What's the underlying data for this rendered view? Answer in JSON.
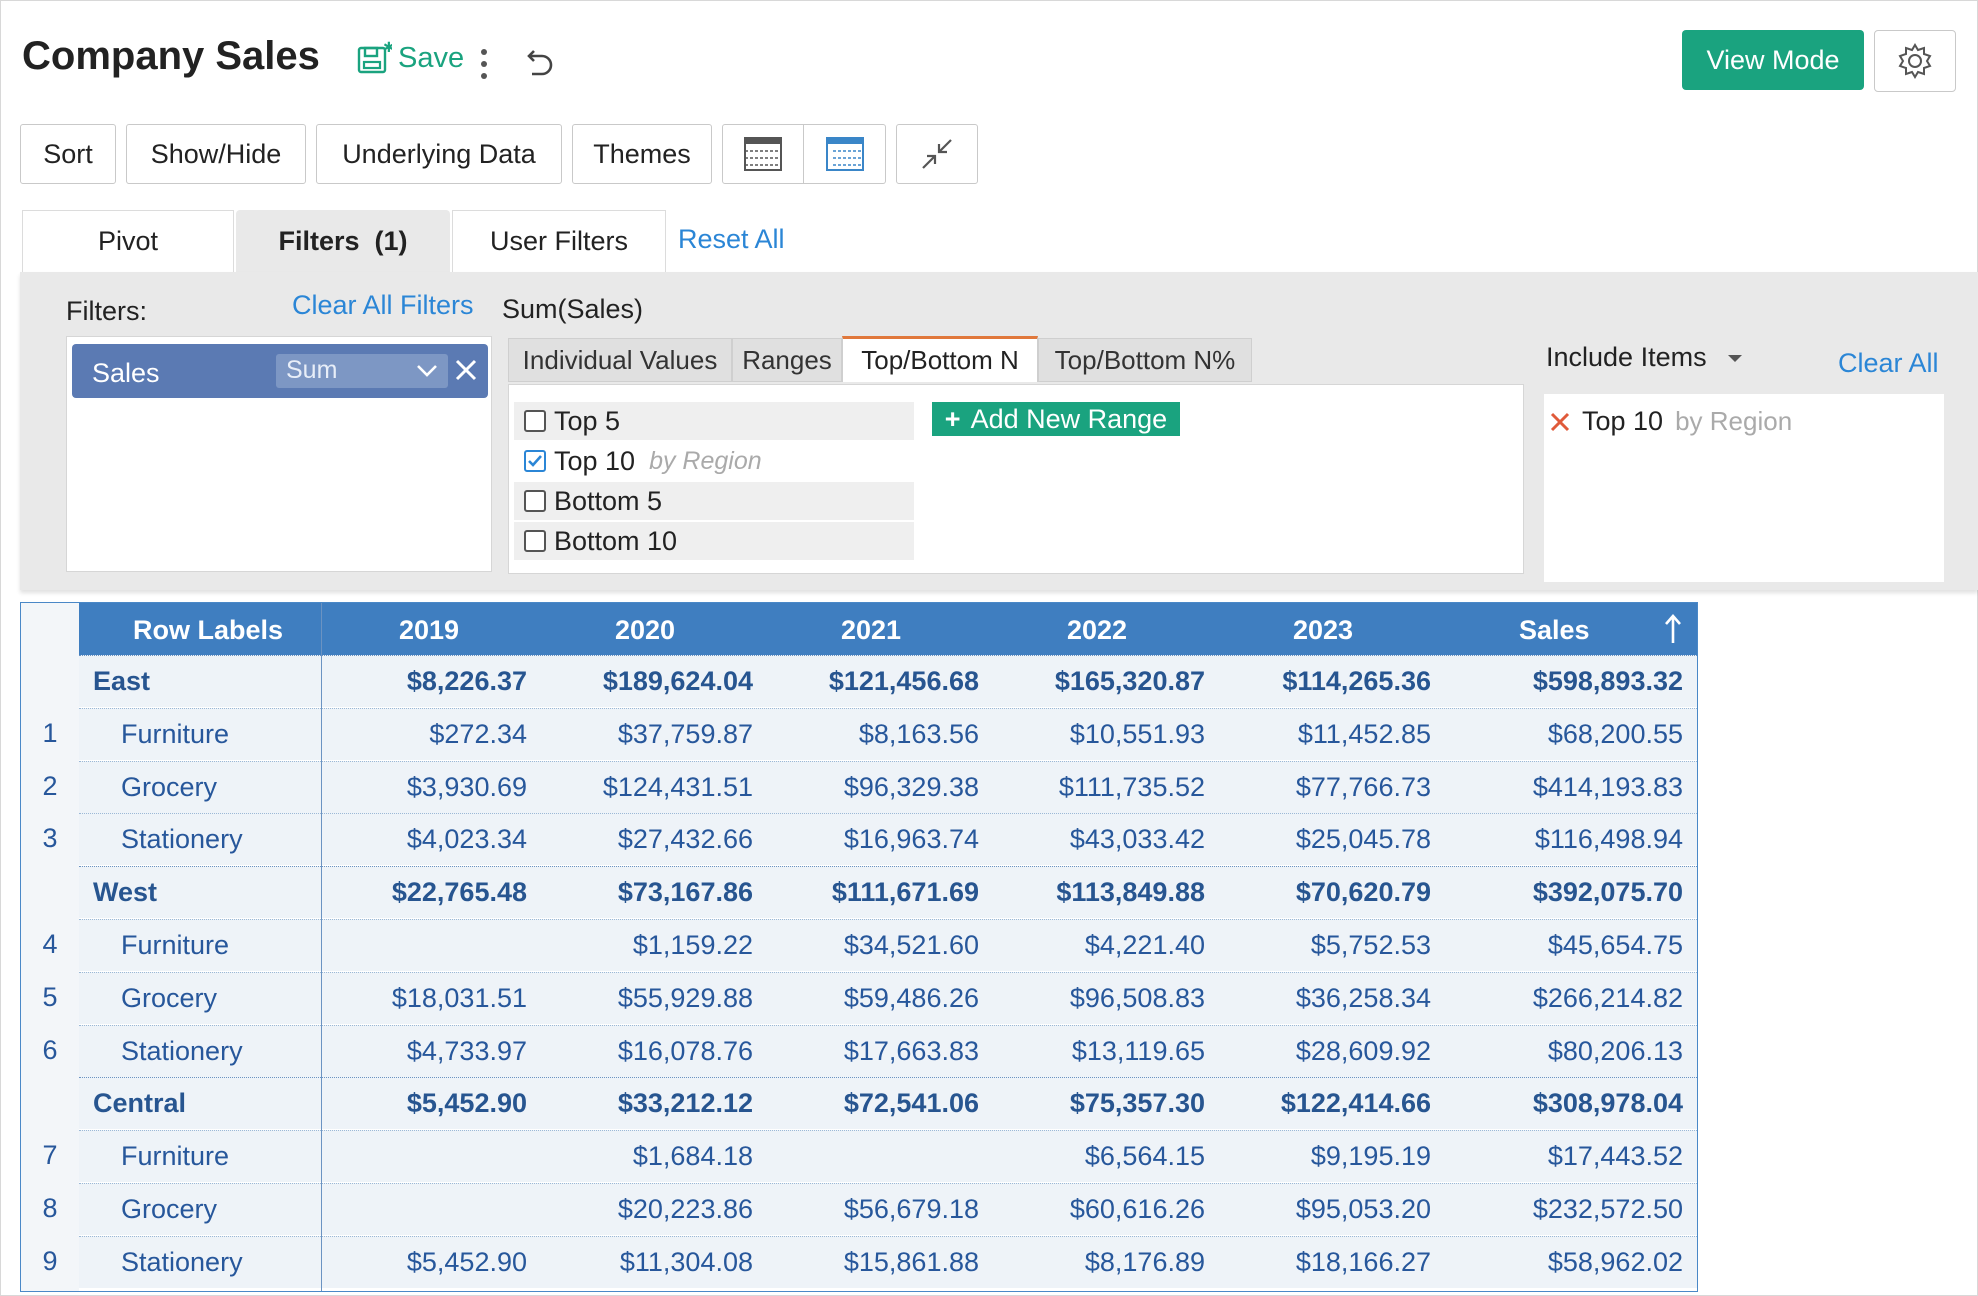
{
  "header": {
    "title": "Company Sales",
    "save_label": "Save",
    "view_mode_label": "View Mode"
  },
  "toolbar": {
    "sort": "Sort",
    "show_hide": "Show/Hide",
    "underlying_data": "Underlying Data",
    "themes": "Themes"
  },
  "tabs": {
    "pivot": "Pivot",
    "filters": "Filters  (1)",
    "user_filters": "User Filters",
    "reset_all": "Reset All"
  },
  "filter_panel": {
    "filters_label": "Filters:",
    "clear_all_filters": "Clear All Filters",
    "selected_measure": "Sum(Sales)",
    "field": {
      "name": "Sales",
      "aggregation": "Sum"
    },
    "sub_tabs": [
      "Individual Values",
      "Ranges",
      "Top/Bottom N",
      "Top/Bottom N%"
    ],
    "active_sub_tab": "Top/Bottom N",
    "options": [
      {
        "label": "Top 5",
        "checked": false,
        "suffix": ""
      },
      {
        "label": "Top 10",
        "checked": true,
        "suffix": "by Region"
      },
      {
        "label": "Bottom 5",
        "checked": false,
        "suffix": ""
      },
      {
        "label": "Bottom 10",
        "checked": false,
        "suffix": ""
      }
    ],
    "add_new_range": "Add New Range",
    "include_items": "Include Items",
    "clear_all": "Clear All",
    "included": {
      "label": "Top 10",
      "suffix": "by Region"
    }
  },
  "pivot_table": {
    "headers": [
      "Row Labels",
      "2019",
      "2020",
      "2021",
      "2022",
      "2023",
      "Sales"
    ],
    "rows": [
      {
        "type": "group",
        "num": "",
        "label": "East",
        "values": [
          "$8,226.37",
          "$189,624.04",
          "$121,456.68",
          "$165,320.87",
          "$114,265.36",
          "$598,893.32"
        ]
      },
      {
        "type": "child",
        "num": "1",
        "label": "Furniture",
        "values": [
          "$272.34",
          "$37,759.87",
          "$8,163.56",
          "$10,551.93",
          "$11,452.85",
          "$68,200.55"
        ]
      },
      {
        "type": "child",
        "num": "2",
        "label": "Grocery",
        "values": [
          "$3,930.69",
          "$124,431.51",
          "$96,329.38",
          "$111,735.52",
          "$77,766.73",
          "$414,193.83"
        ]
      },
      {
        "type": "child",
        "num": "3",
        "label": "Stationery",
        "values": [
          "$4,023.34",
          "$27,432.66",
          "$16,963.74",
          "$43,033.42",
          "$25,045.78",
          "$116,498.94"
        ]
      },
      {
        "type": "group",
        "num": "",
        "label": "West",
        "values": [
          "$22,765.48",
          "$73,167.86",
          "$111,671.69",
          "$113,849.88",
          "$70,620.79",
          "$392,075.70"
        ]
      },
      {
        "type": "child",
        "num": "4",
        "label": "Furniture",
        "values": [
          "",
          "$1,159.22",
          "$34,521.60",
          "$4,221.40",
          "$5,752.53",
          "$45,654.75"
        ]
      },
      {
        "type": "child",
        "num": "5",
        "label": "Grocery",
        "values": [
          "$18,031.51",
          "$55,929.88",
          "$59,486.26",
          "$96,508.83",
          "$36,258.34",
          "$266,214.82"
        ]
      },
      {
        "type": "child",
        "num": "6",
        "label": "Stationery",
        "values": [
          "$4,733.97",
          "$16,078.76",
          "$17,663.83",
          "$13,119.65",
          "$28,609.92",
          "$80,206.13"
        ]
      },
      {
        "type": "group",
        "num": "",
        "label": "Central",
        "values": [
          "$5,452.90",
          "$33,212.12",
          "$72,541.06",
          "$75,357.30",
          "$122,414.66",
          "$308,978.04"
        ]
      },
      {
        "type": "child",
        "num": "7",
        "label": "Furniture",
        "values": [
          "",
          "$1,684.18",
          "",
          "$6,564.15",
          "$9,195.19",
          "$17,443.52"
        ]
      },
      {
        "type": "child",
        "num": "8",
        "label": "Grocery",
        "values": [
          "",
          "$20,223.86",
          "$56,679.18",
          "$60,616.26",
          "$95,053.20",
          "$232,572.50"
        ]
      },
      {
        "type": "child",
        "num": "9",
        "label": "Stationery",
        "values": [
          "$5,452.90",
          "$11,304.08",
          "$15,861.88",
          "$8,176.89",
          "$18,166.27",
          "$58,962.02"
        ]
      }
    ]
  },
  "colors": {
    "accent_green": "#1aa37f",
    "link_blue": "#2b86d6",
    "table_header": "#3f7ec0",
    "active_tab_underline": "#e0783c"
  }
}
